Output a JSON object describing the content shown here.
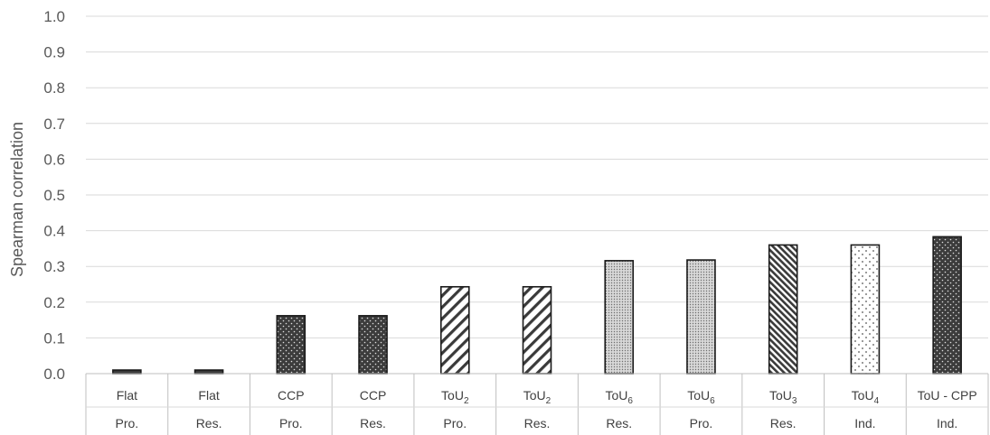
{
  "chart_data": {
    "type": "bar",
    "title": "",
    "ylabel": "Spearman correlation",
    "xlabel": "",
    "ylim": [
      0,
      1.0
    ],
    "ytick_step": 0.1,
    "yticks": [
      "0.0",
      "0.1",
      "0.2",
      "0.3",
      "0.4",
      "0.5",
      "0.6",
      "0.7",
      "0.8",
      "0.9",
      "1.0"
    ],
    "grid": true,
    "legend": "none",
    "categories": [
      {
        "top": "Flat",
        "sub": "",
        "bottom": "Pro.",
        "value": 0.01,
        "pattern": "solid-dark"
      },
      {
        "top": "Flat",
        "sub": "",
        "bottom": "Res.",
        "value": 0.01,
        "pattern": "solid-dark"
      },
      {
        "top": "CCP",
        "sub": "",
        "bottom": "Pro.",
        "value": 0.162,
        "pattern": "dark-dots"
      },
      {
        "top": "CCP",
        "sub": "",
        "bottom": "Res.",
        "value": 0.162,
        "pattern": "dark-dots"
      },
      {
        "top": "ToU",
        "sub": "2",
        "bottom": "Pro.",
        "value": 0.243,
        "pattern": "diag-wide"
      },
      {
        "top": "ToU",
        "sub": "2",
        "bottom": "Res.",
        "value": 0.243,
        "pattern": "diag-wide"
      },
      {
        "top": "ToU",
        "sub": "6",
        "bottom": "Res.",
        "value": 0.316,
        "pattern": "fine-dots"
      },
      {
        "top": "ToU",
        "sub": "6",
        "bottom": "Pro.",
        "value": 0.318,
        "pattern": "fine-dots"
      },
      {
        "top": "ToU",
        "sub": "3",
        "bottom": "Res.",
        "value": 0.36,
        "pattern": "diag-dense"
      },
      {
        "top": "ToU",
        "sub": "4",
        "bottom": "Ind.",
        "value": 0.36,
        "pattern": "sparse-dots"
      },
      {
        "top": "ToU - CPP",
        "sub": "",
        "bottom": "Ind.",
        "value": 0.383,
        "pattern": "dark-dots"
      }
    ]
  }
}
